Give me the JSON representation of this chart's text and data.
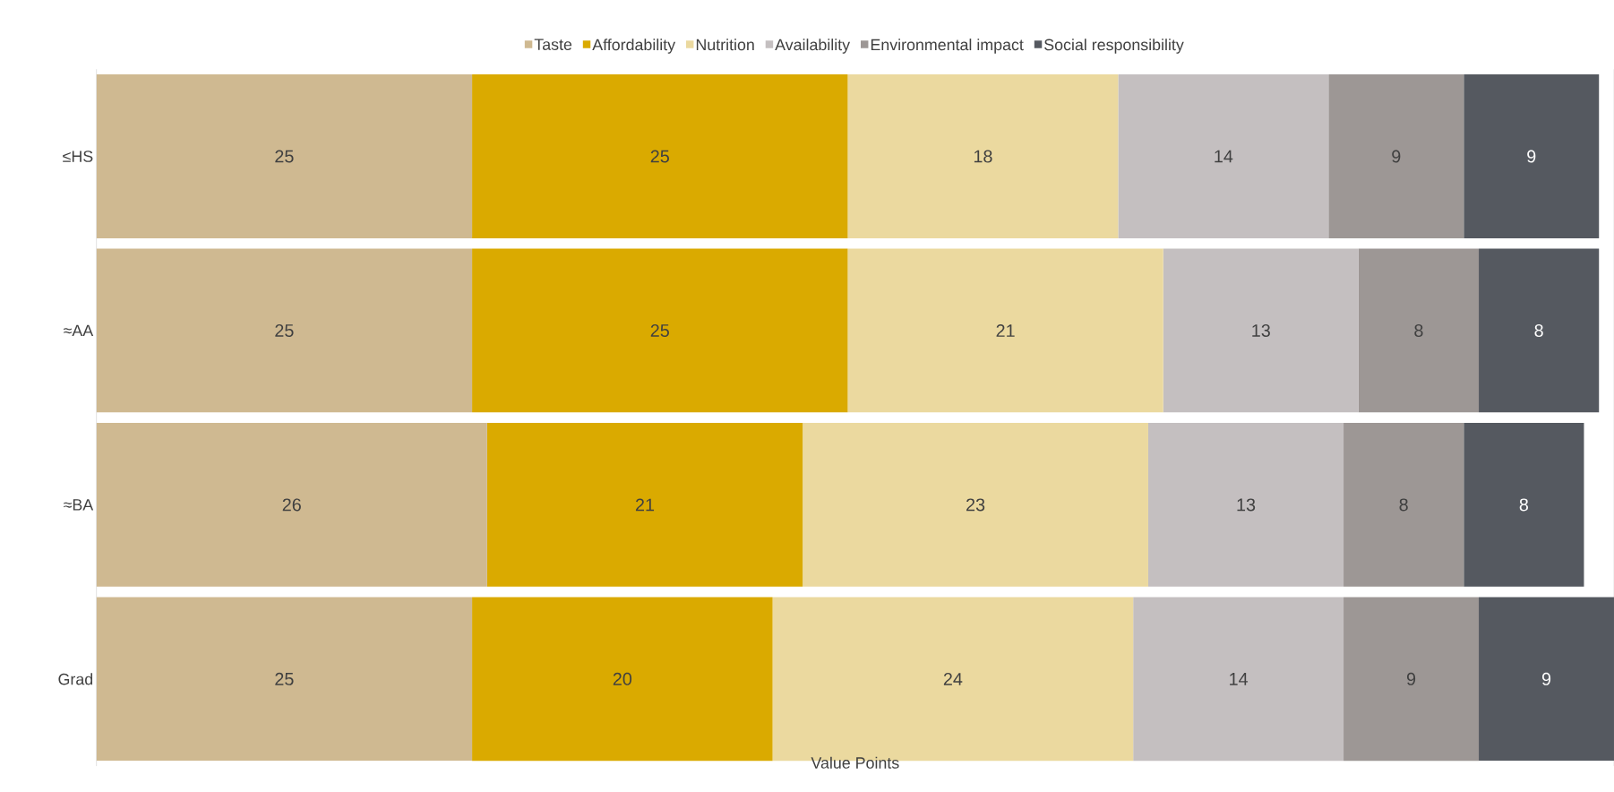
{
  "chart_data": {
    "type": "bar",
    "orientation": "horizontal",
    "stacked": true,
    "data_labels": true,
    "legend": "top",
    "xlabel": "Value Points",
    "categories": [
      "≤HS",
      "≈AA",
      "≈BA",
      "Grad"
    ],
    "series": [
      {
        "name": "Taste",
        "color": "#cfb991",
        "values": [
          25,
          25,
          26,
          25
        ]
      },
      {
        "name": "Affordability",
        "color": "#daaa00",
        "values": [
          25,
          25,
          21,
          20
        ]
      },
      {
        "name": "Nutrition",
        "color": "#ebd99f",
        "values": [
          18,
          21,
          23,
          24
        ]
      },
      {
        "name": "Availability",
        "color": "#c4bfc0",
        "values": [
          14,
          13,
          13,
          14
        ]
      },
      {
        "name": "Environmental impact",
        "color": "#9d9795",
        "values": [
          9,
          8,
          8,
          9
        ]
      },
      {
        "name": "Social responsibility",
        "color": "#555960",
        "values": [
          9,
          8,
          8,
          9
        ]
      }
    ]
  }
}
